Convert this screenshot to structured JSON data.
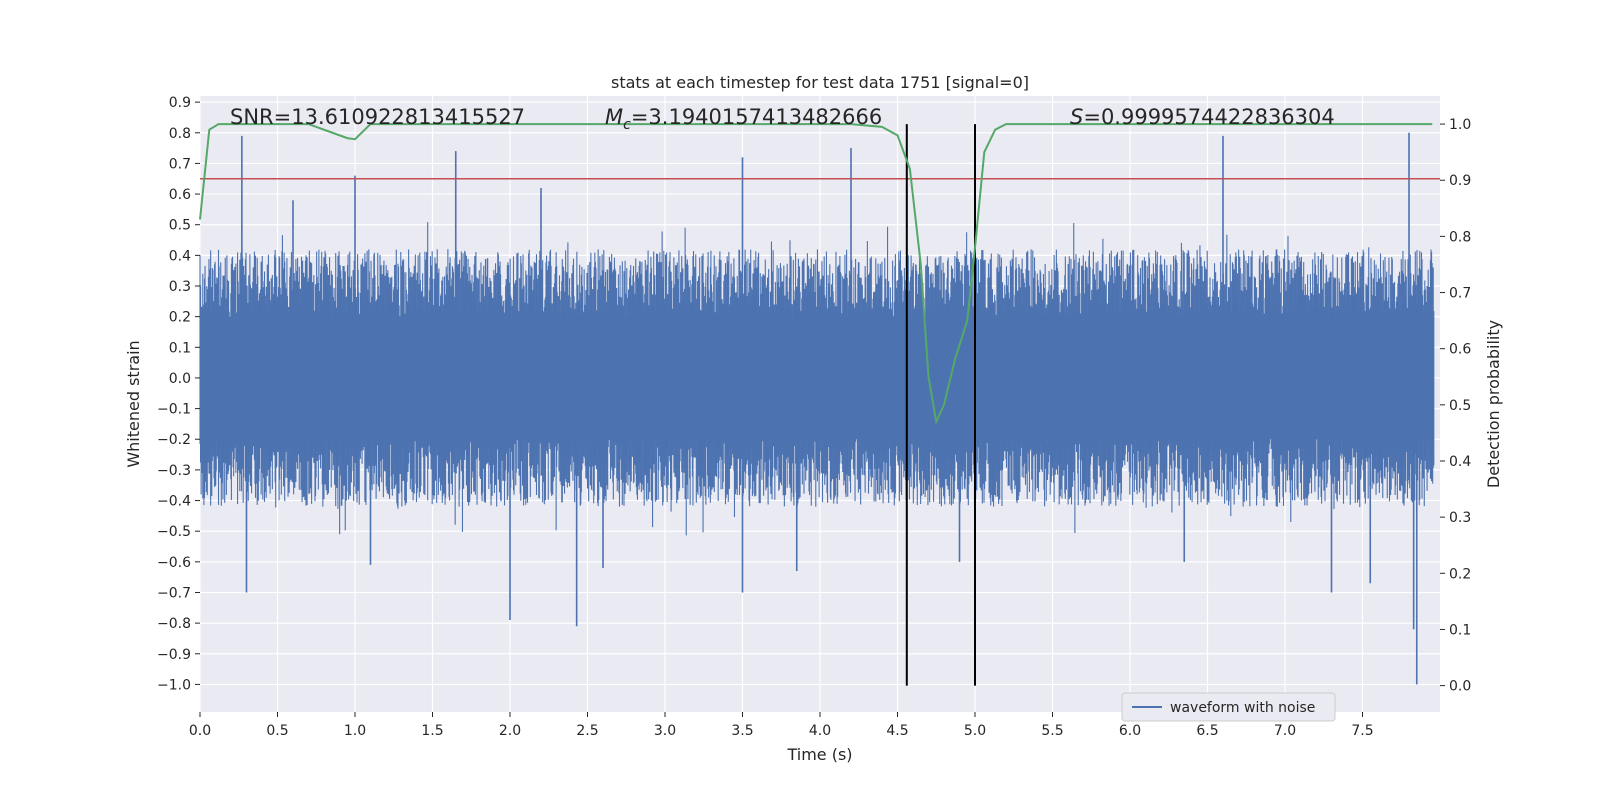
{
  "chart_data": {
    "type": "line",
    "title": "stats at each timestep for test data 1751 [signal=0]",
    "xlabel": "Time (s)",
    "ylabel": "Whitened strain",
    "y2label": "Detection probability",
    "xlim": [
      0.0,
      8.0
    ],
    "ylim": [
      -1.09,
      0.92
    ],
    "y2lim": [
      -0.047,
      1.05
    ],
    "xticks": [
      0.0,
      0.5,
      1.0,
      1.5,
      2.0,
      2.5,
      3.0,
      3.5,
      4.0,
      4.5,
      5.0,
      5.5,
      6.0,
      6.5,
      7.0,
      7.5
    ],
    "xtick_labels": [
      "0.0",
      "0.5",
      "1.0",
      "1.5",
      "2.0",
      "2.5",
      "3.0",
      "3.5",
      "4.0",
      "4.5",
      "5.0",
      "5.5",
      "6.0",
      "6.5",
      "7.0",
      "7.5"
    ],
    "yticks": [
      0.9,
      0.8,
      0.7,
      0.6,
      0.5,
      0.4,
      0.3,
      0.2,
      0.1,
      0.0,
      -0.1,
      -0.2,
      -0.3,
      -0.4,
      -0.5,
      -0.6,
      -0.7,
      -0.8,
      -0.9,
      -1.0
    ],
    "ytick_labels": [
      "0.9",
      "0.8",
      "0.7",
      "0.6",
      "0.5",
      "0.4",
      "0.3",
      "0.2",
      "0.1",
      "0.0",
      "−0.1",
      "−0.2",
      "−0.3",
      "−0.4",
      "−0.5",
      "−0.6",
      "−0.7",
      "−0.8",
      "−0.9",
      "−1.0"
    ],
    "y2ticks": [
      1.0,
      0.9,
      0.8,
      0.7,
      0.6,
      0.5,
      0.4,
      0.3,
      0.2,
      0.1,
      0.0
    ],
    "y2tick_labels": [
      "1.0",
      "0.9",
      "0.8",
      "0.7",
      "0.6",
      "0.5",
      "0.4",
      "0.3",
      "0.2",
      "0.1",
      "0.0"
    ],
    "grid": true,
    "legend": {
      "placement": "lower-right",
      "entries": [
        "waveform with noise"
      ]
    },
    "series": [
      {
        "name": "waveform with noise",
        "axis": "left",
        "color": "#4c72b0",
        "kind": "noise",
        "envelope_typical": 0.35,
        "peaks": [
          [
            0.27,
            0.79
          ],
          [
            0.3,
            -0.7
          ],
          [
            0.6,
            0.58
          ],
          [
            1.0,
            0.66
          ],
          [
            1.1,
            -0.61
          ],
          [
            1.65,
            0.74
          ],
          [
            2.0,
            -0.79
          ],
          [
            2.2,
            0.62
          ],
          [
            2.43,
            -0.81
          ],
          [
            2.6,
            -0.62
          ],
          [
            3.5,
            0.72
          ],
          [
            3.5,
            -0.7
          ],
          [
            3.85,
            -0.63
          ],
          [
            4.2,
            0.75
          ],
          [
            4.9,
            -0.6
          ],
          [
            6.6,
            0.79
          ],
          [
            6.35,
            -0.6
          ],
          [
            7.3,
            -0.7
          ],
          [
            7.55,
            -0.67
          ],
          [
            7.8,
            0.8
          ],
          [
            7.85,
            -1.0
          ],
          [
            7.83,
            -0.82
          ]
        ]
      },
      {
        "axis": "right",
        "color": "#55a868",
        "x": [
          0.0,
          0.06,
          0.12,
          0.5,
          0.7,
          0.85,
          0.95,
          1.0,
          1.1,
          1.2,
          4.2,
          4.4,
          4.5,
          4.58,
          4.65,
          4.7,
          4.75,
          4.8,
          4.87,
          4.95,
          5.0,
          5.06,
          5.13,
          5.2,
          5.35,
          7.95
        ],
        "y": [
          0.83,
          0.99,
          1.0,
          1.0,
          1.0,
          0.985,
          0.975,
          0.973,
          1.0,
          1.0,
          1.0,
          0.995,
          0.98,
          0.92,
          0.75,
          0.55,
          0.47,
          0.5,
          0.58,
          0.65,
          0.78,
          0.95,
          0.99,
          1.0,
          1.0,
          1.0
        ]
      }
    ],
    "hlines": [
      {
        "axis": "left",
        "y": 0.65,
        "color": "#c44e52"
      }
    ],
    "vlines": [
      {
        "x": 4.56,
        "color": "#000000"
      },
      {
        "x": 5.0,
        "color": "#000000"
      }
    ],
    "annotations": {
      "snr": "SNR=13.610922813415527",
      "mc_symbol": "M",
      "mc_sub": "c",
      "mc_value": "=3.1940157413482666",
      "s_symbol": "S",
      "s_value": "=0.9999574422836304"
    }
  }
}
